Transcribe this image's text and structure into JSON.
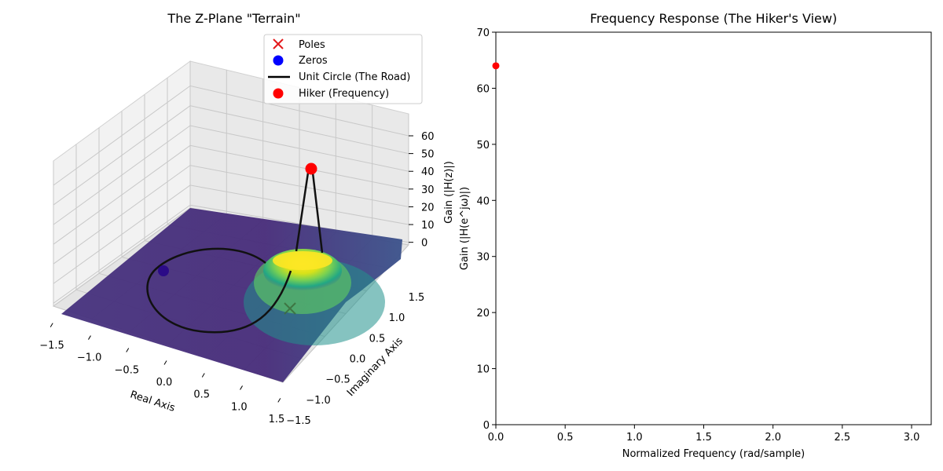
{
  "chart_data": [
    {
      "type": "surface3d",
      "title": "The Z-Plane \"Terrain\"",
      "xlabel": "Real Axis",
      "ylabel": "Imaginary Axis",
      "zlabel": "Gain (|H(z)|)",
      "xlim": [
        -1.5,
        1.5
      ],
      "ylim": [
        -1.5,
        1.5
      ],
      "zlim": [
        0,
        65
      ],
      "x_ticks": [
        "−1.5",
        "−1.0",
        "−0.5",
        "0.0",
        "0.5",
        "1.0",
        "1.5"
      ],
      "y_ticks": [
        "−1.5",
        "−1.0",
        "−0.5",
        "0.0",
        "0.5",
        "1.0",
        "1.5"
      ],
      "z_ticks": [
        "0",
        "10",
        "20",
        "30",
        "40",
        "50",
        "60"
      ],
      "colormap": "viridis",
      "poles": [
        {
          "real": 0.95,
          "imag": 0.0
        }
      ],
      "zeros": [
        {
          "real": -1.0,
          "imag": 0.0
        }
      ],
      "hiker": {
        "frequency": 0.0,
        "gain": 64
      },
      "legend": {
        "placement": "top",
        "entries": [
          {
            "label": "Poles",
            "marker": "x",
            "color": "#e31a1c"
          },
          {
            "label": "Zeros",
            "marker": "circle",
            "color": "#0000ff"
          },
          {
            "label": "Unit Circle (The Road)",
            "marker": "line",
            "color": "#000000"
          },
          {
            "label": "Hiker (Frequency)",
            "marker": "circle",
            "color": "#ff0000"
          }
        ]
      },
      "grid": true
    },
    {
      "type": "line",
      "title": "Frequency Response (The Hiker's View)",
      "xlabel": "Normalized Frequency (rad/sample)",
      "ylabel": "Gain (|H(e^jω)|)",
      "xlim": [
        0,
        3.14159
      ],
      "ylim": [
        0,
        70
      ],
      "x_ticks": [
        0,
        0.5,
        1.0,
        1.5,
        2.0,
        2.5,
        3.0
      ],
      "x_tick_labels": [
        "0.0",
        "0.5",
        "1.0",
        "1.5",
        "2.0",
        "2.5",
        "3.0"
      ],
      "y_ticks": [
        0,
        10,
        20,
        30,
        40,
        50,
        60,
        70
      ],
      "y_tick_labels": [
        "0",
        "10",
        "20",
        "30",
        "40",
        "50",
        "60",
        "70"
      ],
      "series": [
        {
          "x": [],
          "y": []
        }
      ],
      "marker_point": {
        "x": 0.0,
        "y": 64,
        "color": "#ff0000"
      },
      "grid": false
    }
  ]
}
